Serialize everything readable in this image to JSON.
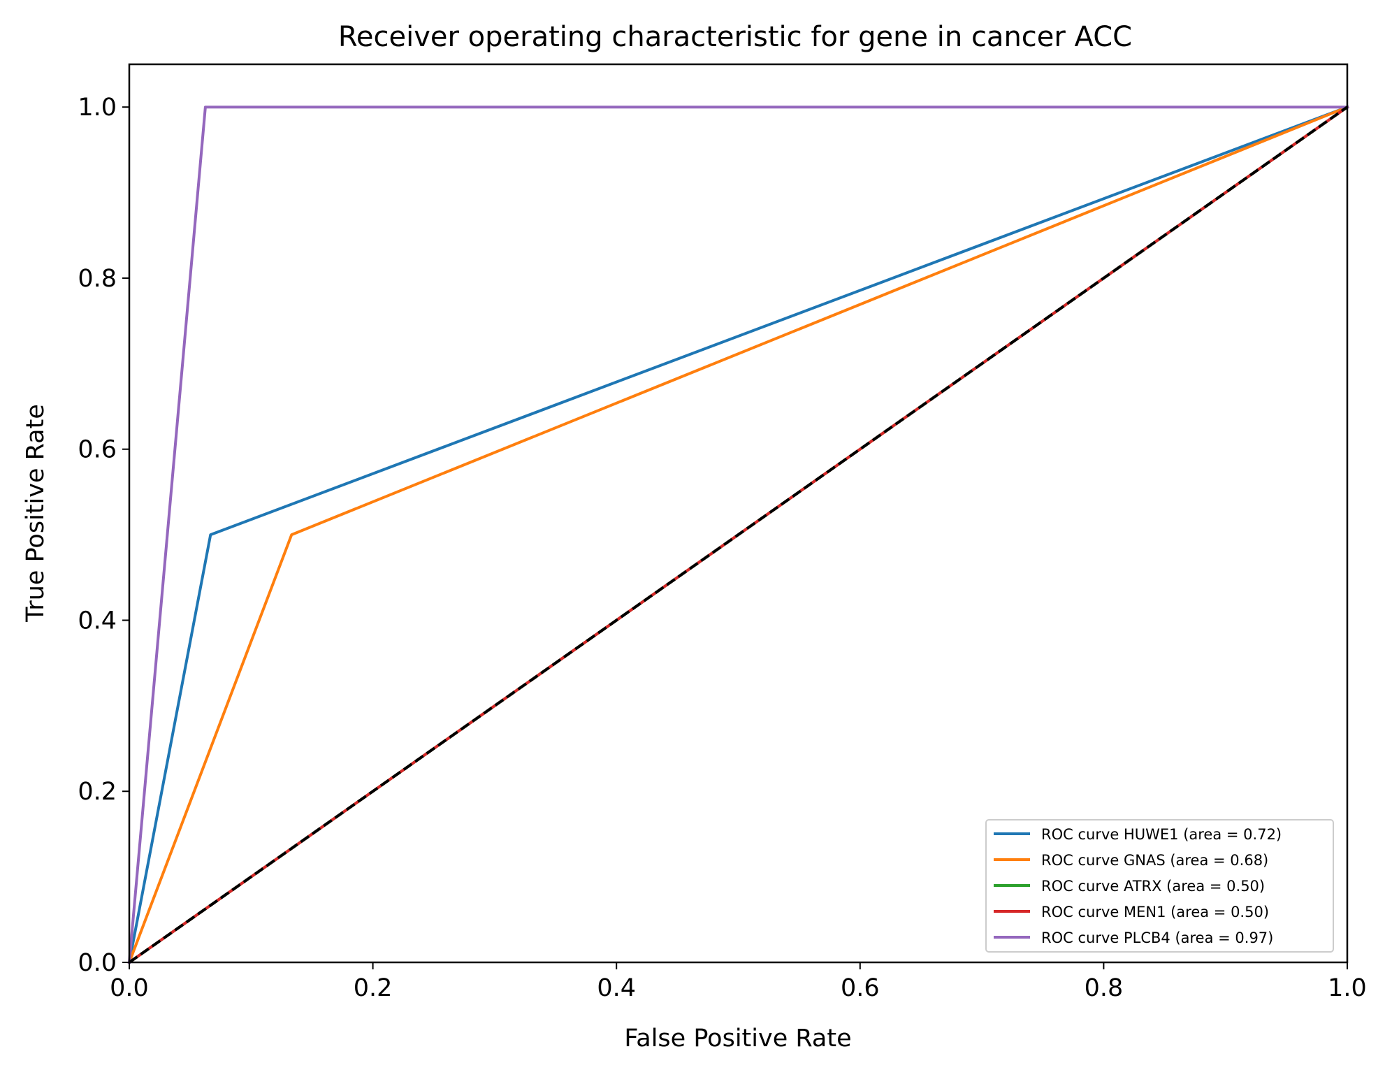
{
  "chart_data": {
    "type": "line",
    "title": "Receiver operating characteristic for gene in cancer ACC",
    "xlabel": "False Positive Rate",
    "ylabel": "True Positive Rate",
    "xlim": [
      0.0,
      1.0
    ],
    "ylim": [
      0.0,
      1.05
    ],
    "xticks": [
      0.0,
      0.2,
      0.4,
      0.6,
      0.8,
      1.0
    ],
    "yticks": [
      0.0,
      0.2,
      0.4,
      0.6,
      0.8,
      1.0
    ],
    "xtick_labels": [
      "0.0",
      "0.2",
      "0.4",
      "0.6",
      "0.8",
      "1.0"
    ],
    "ytick_labels": [
      "0.0",
      "0.2",
      "0.4",
      "0.6",
      "0.8",
      "1.0"
    ],
    "grid": false,
    "legend_position": "lower right",
    "series": [
      {
        "name": "ROC curve HUWE1 (area = 0.72)",
        "color": "#1f77b4",
        "x": [
          0.0,
          0.0667,
          1.0
        ],
        "y": [
          0.0,
          0.5,
          1.0
        ]
      },
      {
        "name": "ROC curve GNAS (area = 0.68)",
        "color": "#ff7f0e",
        "x": [
          0.0,
          0.1333,
          1.0
        ],
        "y": [
          0.0,
          0.5,
          1.0
        ]
      },
      {
        "name": "ROC curve ATRX (area = 0.50)",
        "color": "#2ca02c",
        "x": [
          0.0,
          1.0
        ],
        "y": [
          0.0,
          1.0
        ]
      },
      {
        "name": "ROC curve MEN1 (area = 0.50)",
        "color": "#d62728",
        "x": [
          0.0,
          1.0
        ],
        "y": [
          0.0,
          1.0
        ]
      },
      {
        "name": "ROC curve PLCB4 (area = 0.97)",
        "color": "#9467bd",
        "x": [
          0.0,
          0.0625,
          1.0
        ],
        "y": [
          0.0,
          1.0,
          1.0
        ]
      }
    ],
    "reference_line": {
      "color": "#000000",
      "style": "dashed",
      "x": [
        0.0,
        1.0
      ],
      "y": [
        0.0,
        1.0
      ]
    }
  }
}
